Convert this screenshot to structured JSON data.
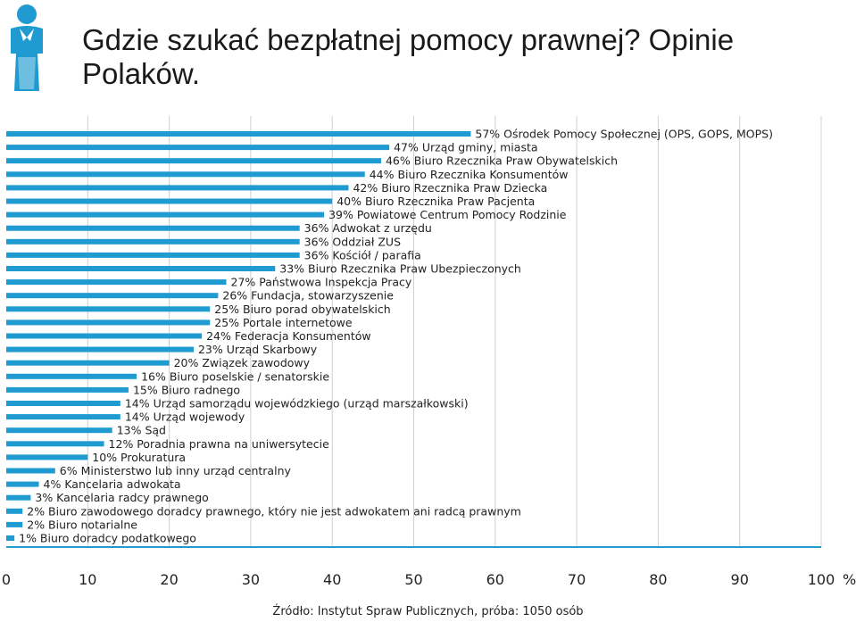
{
  "title": "Gdzie szukać bezpłatnej pomocy prawnej? Opinie Polaków.",
  "source": "Źródło: Instytut Spraw Publicznych, próba: 1050 osób",
  "colors": {
    "bar": "#1f9bd1",
    "axis": "#1f9bd1",
    "grid": "#cfcfcf",
    "icon": "#1f9bd1"
  },
  "icon": "person-icon",
  "chart_data": {
    "type": "bar",
    "orientation": "horizontal",
    "xlim": [
      0,
      100
    ],
    "xticks": [
      0,
      10,
      20,
      30,
      40,
      50,
      60,
      70,
      80,
      90,
      100
    ],
    "xunit": "%",
    "grid": true,
    "categories": [
      "Ośrodek Pomocy Społecznej (OPS, GOPS, MOPS)",
      "Urząd gminy, miasta",
      "Biuro Rzecznika Praw Obywatelskich",
      "Biuro Rzecznika Konsumentów",
      "Biuro Rzecznika Praw Dziecka",
      "Biuro Rzecznika Praw Pacjenta",
      "Powiatowe Centrum Pomocy Rodzinie",
      "Adwokat z urzędu",
      "Oddział ZUS",
      "Kościół / parafia",
      "Biuro Rzecznika Praw Ubezpieczonych",
      "Państwowa Inspekcja Pracy",
      "Fundacja, stowarzyszenie",
      "Biuro porad obywatelskich",
      "Portale internetowe",
      "Federacja Konsumentów",
      "Urząd Skarbowy",
      "Związek zawodowy",
      "Biuro poselskie / senatorskie",
      "Biuro radnego",
      "Urząd samorządu wojewódzkiego (urząd marszałkowski)",
      "Urząd wojewody",
      "Sąd",
      "Poradnia prawna na uniwersytecie",
      "Prokuratura",
      "Ministerstwo lub inny urząd centralny",
      "Kancelaria adwokata",
      "Kancelaria radcy prawnego",
      "Biuro zawodowego doradcy prawnego, który nie jest adwokatem ani radcą prawnym",
      "Biuro notarialne",
      "Biuro doradcy podatkowego"
    ],
    "values": [
      57,
      47,
      46,
      44,
      42,
      40,
      39,
      36,
      36,
      36,
      33,
      27,
      26,
      25,
      25,
      24,
      23,
      20,
      16,
      15,
      14,
      14,
      13,
      12,
      10,
      6,
      4,
      3,
      2,
      2,
      1
    ]
  }
}
